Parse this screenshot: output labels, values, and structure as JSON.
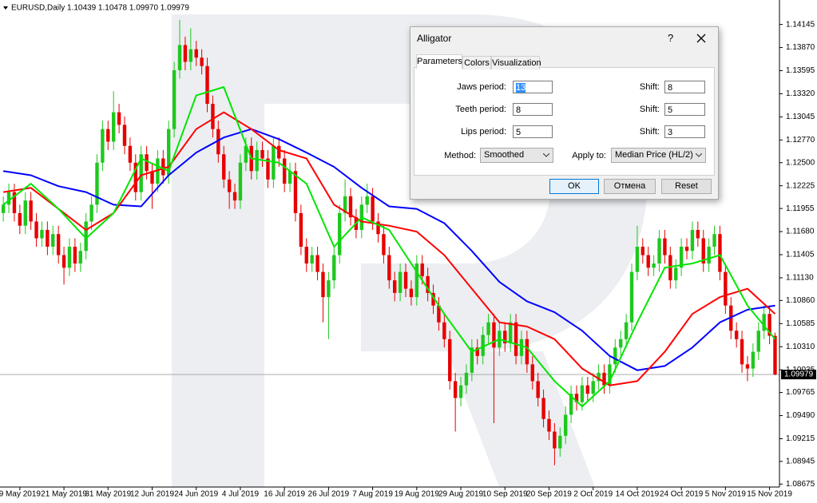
{
  "chart_data": {
    "type": "candlestick",
    "header": "EURUSD,Daily  1.10439 1.10478 1.09970 1.09979",
    "candles": {
      "open": [
        1.119,
        1.12,
        1.1215,
        1.119,
        1.1175,
        1.1205,
        1.118,
        1.116,
        1.117,
        1.115,
        1.1165,
        1.114,
        1.1125,
        1.115,
        1.113,
        1.1145,
        1.118,
        1.12,
        1.125,
        1.129,
        1.1275,
        1.131,
        1.1295,
        1.127,
        1.125,
        1.1215,
        1.126,
        1.124,
        1.1225,
        1.1255,
        1.1235,
        1.129,
        1.136,
        1.139,
        1.137,
        1.1385,
        1.1375,
        1.1365,
        1.132,
        1.129,
        1.126,
        1.123,
        1.1215,
        1.1205,
        1.125,
        1.127,
        1.124,
        1.1265,
        1.1255,
        1.123,
        1.127,
        1.1255,
        1.1225,
        1.124,
        1.119,
        1.115,
        1.113,
        1.114,
        1.112,
        1.109,
        1.111,
        1.114,
        1.119,
        1.121,
        1.1185,
        1.117,
        1.12,
        1.121,
        1.118,
        1.1165,
        1.114,
        1.111,
        1.1095,
        1.112,
        1.11,
        1.109,
        1.113,
        1.1115,
        1.1095,
        1.108,
        1.106,
        1.104,
        1.099,
        1.097,
        1.0985,
        1.1,
        1.103,
        1.102,
        1.1045,
        1.106,
        1.103,
        1.105,
        1.1035,
        1.106,
        1.102,
        1.104,
        1.101,
        1.099,
        1.097,
        1.0945,
        1.093,
        1.091,
        1.0925,
        1.095,
        1.0975,
        1.0965,
        1.0985,
        1.0975,
        1.099,
        1.1,
        1.0985,
        1.101,
        1.103,
        1.104,
        1.106,
        1.112,
        1.115,
        1.114,
        1.1125,
        1.113,
        1.116,
        1.114,
        1.111,
        1.1125,
        1.115,
        1.1145,
        1.117,
        1.116,
        1.113,
        1.115,
        1.1165,
        1.112,
        1.108,
        1.105,
        1.104,
        1.101,
        1.1005,
        1.1025,
        1.105,
        1.107,
        1.10439
      ],
      "high": [
        1.121,
        1.1225,
        1.1225,
        1.12,
        1.1215,
        1.1215,
        1.119,
        1.118,
        1.118,
        1.1175,
        1.1175,
        1.115,
        1.116,
        1.116,
        1.1155,
        1.119,
        1.121,
        1.126,
        1.13,
        1.13,
        1.1335,
        1.132,
        1.1305,
        1.128,
        1.126,
        1.127,
        1.127,
        1.125,
        1.1265,
        1.1265,
        1.13,
        1.137,
        1.142,
        1.14,
        1.141,
        1.1395,
        1.1385,
        1.1375,
        1.133,
        1.13,
        1.127,
        1.124,
        1.1225,
        1.126,
        1.128,
        1.128,
        1.1275,
        1.1275,
        1.1265,
        1.128,
        1.128,
        1.1265,
        1.125,
        1.125,
        1.12,
        1.116,
        1.115,
        1.115,
        1.113,
        1.112,
        1.115,
        1.12,
        1.123,
        1.122,
        1.1195,
        1.121,
        1.1225,
        1.122,
        1.119,
        1.1175,
        1.115,
        1.112,
        1.113,
        1.113,
        1.111,
        1.114,
        1.114,
        1.1125,
        1.1105,
        1.109,
        1.107,
        1.105,
        1.1,
        1.0995,
        1.101,
        1.104,
        1.104,
        1.1055,
        1.107,
        1.107,
        1.106,
        1.106,
        1.107,
        1.107,
        1.105,
        1.105,
        1.102,
        1.1,
        1.098,
        1.0955,
        1.094,
        1.0935,
        1.096,
        1.0985,
        1.0985,
        1.0995,
        1.0995,
        1.1,
        1.101,
        1.101,
        1.102,
        1.104,
        1.105,
        1.107,
        1.113,
        1.1175,
        1.116,
        1.115,
        1.114,
        1.117,
        1.117,
        1.115,
        1.1135,
        1.116,
        1.116,
        1.118,
        1.118,
        1.117,
        1.116,
        1.1175,
        1.1175,
        1.113,
        1.109,
        1.106,
        1.105,
        1.102,
        1.1035,
        1.106,
        1.108,
        1.108,
        1.10478
      ],
      "low": [
        1.118,
        1.119,
        1.118,
        1.1165,
        1.1165,
        1.117,
        1.115,
        1.115,
        1.114,
        1.114,
        1.113,
        1.1105,
        1.1115,
        1.112,
        1.112,
        1.1135,
        1.117,
        1.119,
        1.124,
        1.1265,
        1.1265,
        1.1285,
        1.126,
        1.124,
        1.1205,
        1.1205,
        1.123,
        1.1195,
        1.1215,
        1.1225,
        1.1225,
        1.128,
        1.135,
        1.136,
        1.136,
        1.1365,
        1.1355,
        1.131,
        1.128,
        1.125,
        1.122,
        1.1195,
        1.1195,
        1.1195,
        1.124,
        1.123,
        1.123,
        1.1245,
        1.122,
        1.122,
        1.1245,
        1.1215,
        1.1215,
        1.118,
        1.114,
        1.112,
        1.112,
        1.111,
        1.106,
        1.104,
        1.11,
        1.113,
        1.118,
        1.1175,
        1.116,
        1.116,
        1.119,
        1.117,
        1.1155,
        1.113,
        1.11,
        1.1085,
        1.1085,
        1.109,
        1.108,
        1.108,
        1.1105,
        1.1085,
        1.107,
        1.105,
        1.103,
        1.098,
        1.093,
        1.096,
        1.0975,
        1.099,
        1.101,
        1.101,
        1.1035,
        1.094,
        1.102,
        1.1025,
        1.1025,
        1.101,
        1.101,
        1.1,
        1.098,
        1.096,
        1.0935,
        1.092,
        1.089,
        1.09,
        1.0915,
        1.094,
        1.0955,
        1.0955,
        1.0965,
        1.0965,
        1.098,
        1.0975,
        1.0975,
        1.1,
        1.102,
        1.103,
        1.105,
        1.111,
        1.113,
        1.1115,
        1.1115,
        1.112,
        1.113,
        1.11,
        1.11,
        1.1115,
        1.1135,
        1.1135,
        1.115,
        1.112,
        1.112,
        1.114,
        1.111,
        1.107,
        1.104,
        1.103,
        1.1,
        1.099,
        1.0995,
        1.1015,
        1.104,
        1.1034,
        1.0997
      ],
      "close": [
        1.12,
        1.1215,
        1.119,
        1.1175,
        1.1205,
        1.118,
        1.116,
        1.117,
        1.115,
        1.1165,
        1.114,
        1.1125,
        1.115,
        1.113,
        1.1145,
        1.118,
        1.12,
        1.125,
        1.129,
        1.1275,
        1.131,
        1.1295,
        1.127,
        1.125,
        1.1215,
        1.126,
        1.124,
        1.1225,
        1.1255,
        1.1235,
        1.129,
        1.136,
        1.139,
        1.137,
        1.1385,
        1.1375,
        1.1365,
        1.132,
        1.129,
        1.126,
        1.123,
        1.1215,
        1.1205,
        1.125,
        1.127,
        1.124,
        1.1265,
        1.1255,
        1.123,
        1.127,
        1.1255,
        1.1225,
        1.124,
        1.119,
        1.115,
        1.113,
        1.114,
        1.112,
        1.109,
        1.111,
        1.114,
        1.119,
        1.121,
        1.1185,
        1.117,
        1.12,
        1.121,
        1.118,
        1.1165,
        1.114,
        1.111,
        1.1095,
        1.112,
        1.11,
        1.109,
        1.113,
        1.1115,
        1.1095,
        1.108,
        1.106,
        1.104,
        1.099,
        1.097,
        1.0985,
        1.1,
        1.103,
        1.102,
        1.1045,
        1.106,
        1.103,
        1.105,
        1.1035,
        1.106,
        1.102,
        1.104,
        1.101,
        1.099,
        1.097,
        1.0945,
        1.093,
        1.091,
        1.0925,
        1.095,
        1.0975,
        1.0965,
        1.0985,
        1.0975,
        1.099,
        1.1,
        1.0985,
        1.101,
        1.103,
        1.104,
        1.106,
        1.112,
        1.115,
        1.114,
        1.1125,
        1.113,
        1.116,
        1.114,
        1.111,
        1.1125,
        1.115,
        1.1145,
        1.117,
        1.116,
        1.113,
        1.115,
        1.1165,
        1.112,
        1.108,
        1.105,
        1.104,
        1.101,
        1.1005,
        1.1025,
        1.105,
        1.107,
        1.1044,
        1.09979
      ],
      "up_color": "#1ec81e",
      "down_color": "#e60000"
    },
    "series": [
      {
        "name": "Jaws",
        "color": "#0000ff",
        "x": [
          0,
          5,
          10,
          15,
          20,
          25,
          30,
          35,
          40,
          45,
          50,
          55,
          60,
          65,
          70,
          75,
          80,
          85,
          90,
          95,
          100,
          105,
          110,
          115,
          120,
          125,
          130,
          135,
          140
        ],
        "values": [
          1.124,
          1.1235,
          1.1222,
          1.1215,
          1.12,
          1.1198,
          1.1235,
          1.1262,
          1.128,
          1.129,
          1.1278,
          1.1262,
          1.1245,
          1.122,
          1.1198,
          1.1195,
          1.1178,
          1.1145,
          1.1108,
          1.1085,
          1.1072,
          1.105,
          1.102,
          1.1003,
          1.1008,
          1.103,
          1.106,
          1.1075,
          1.108
        ]
      },
      {
        "name": "Teeth",
        "color": "#ff0000",
        "x": [
          0,
          5,
          10,
          15,
          20,
          25,
          30,
          35,
          40,
          45,
          50,
          55,
          60,
          65,
          70,
          75,
          80,
          85,
          90,
          95,
          100,
          105,
          110,
          115,
          120,
          125,
          130,
          135,
          140
        ],
        "values": [
          1.1215,
          1.122,
          1.1195,
          1.117,
          1.119,
          1.1235,
          1.1245,
          1.129,
          1.131,
          1.129,
          1.1265,
          1.1255,
          1.12,
          1.118,
          1.1175,
          1.1168,
          1.114,
          1.11,
          1.106,
          1.1055,
          1.104,
          1.1005,
          1.0985,
          1.099,
          1.1025,
          1.107,
          1.109,
          1.11,
          1.107
        ]
      },
      {
        "name": "Lips",
        "color": "#00e600",
        "x": [
          0,
          5,
          10,
          15,
          20,
          25,
          30,
          35,
          40,
          45,
          50,
          55,
          60,
          65,
          70,
          75,
          80,
          85,
          90,
          95,
          100,
          105,
          110,
          115,
          120,
          125,
          130,
          135,
          140
        ],
        "values": [
          1.12,
          1.1225,
          1.1195,
          1.116,
          1.119,
          1.1255,
          1.124,
          1.133,
          1.134,
          1.1255,
          1.125,
          1.1225,
          1.115,
          1.1185,
          1.117,
          1.112,
          1.107,
          1.1025,
          1.104,
          1.103,
          1.099,
          1.096,
          1.099,
          1.106,
          1.1125,
          1.113,
          1.114,
          1.108,
          1.104
        ]
      }
    ],
    "current_price": 1.09979,
    "xlim": [
      -0.6,
      140.8
    ],
    "ylim": [
      1.0864,
      1.1436
    ],
    "xticks": [
      {
        "value": 3,
        "label": "9 May 2019"
      },
      {
        "value": 11,
        "label": "21 May 2019"
      },
      {
        "value": 19,
        "label": "31 May 2019"
      },
      {
        "value": 27,
        "label": "12 Jun 2019"
      },
      {
        "value": 35,
        "label": "24 Jun 2019"
      },
      {
        "value": 43,
        "label": "4 Jul 2019"
      },
      {
        "value": 51,
        "label": "16 Jul 2019"
      },
      {
        "value": 59,
        "label": "26 Jul 2019"
      },
      {
        "value": 67,
        "label": "7 Aug 2019"
      },
      {
        "value": 75,
        "label": "19 Aug 2019"
      },
      {
        "value": 83,
        "label": "29 Aug 2019"
      },
      {
        "value": 91,
        "label": "10 Sep 2019"
      },
      {
        "value": 99,
        "label": "20 Sep 2019"
      },
      {
        "value": 107,
        "label": "2 Oct 2019"
      },
      {
        "value": 115,
        "label": "14 Oct 2019"
      },
      {
        "value": 123,
        "label": "24 Oct 2019"
      },
      {
        "value": 131,
        "label": "5 Nov 2019"
      },
      {
        "value": 139,
        "label": "15 Nov 2019"
      }
    ],
    "yticks": [
      {
        "value": 1.14145,
        "label": "1.14145"
      },
      {
        "value": 1.1387,
        "label": "1.13870"
      },
      {
        "value": 1.13595,
        "label": "1.13595"
      },
      {
        "value": 1.1332,
        "label": "1.13320"
      },
      {
        "value": 1.13045,
        "label": "1.13045"
      },
      {
        "value": 1.1277,
        "label": "1.12770"
      },
      {
        "value": 1.125,
        "label": "1.12500"
      },
      {
        "value": 1.12225,
        "label": "1.12225"
      },
      {
        "value": 1.11955,
        "label": "1.11955"
      },
      {
        "value": 1.1168,
        "label": "1.11680"
      },
      {
        "value": 1.11405,
        "label": "1.11405"
      },
      {
        "value": 1.1113,
        "label": "1.11130"
      },
      {
        "value": 1.1086,
        "label": "1.10860"
      },
      {
        "value": 1.10585,
        "label": "1.10585"
      },
      {
        "value": 1.1031,
        "label": "1.10310"
      },
      {
        "value": 1.10035,
        "label": "1.10035"
      },
      {
        "value": 1.09765,
        "label": "1.09765"
      },
      {
        "value": 1.0949,
        "label": "1.09490"
      },
      {
        "value": 1.09215,
        "label": "1.09215"
      },
      {
        "value": 1.08945,
        "label": "1.08945"
      },
      {
        "value": 1.08675,
        "label": "1.08675"
      }
    ]
  },
  "dialog": {
    "title": "Alligator",
    "help": "?",
    "tabs": [
      "Parameters",
      "Colors",
      "Visualization"
    ],
    "rows": [
      {
        "label": "Jaws period:",
        "value": 13,
        "shift_label": "Shift:",
        "shift": 8
      },
      {
        "label": "Teeth period:",
        "value": 8,
        "shift_label": "Shift:",
        "shift": 5
      },
      {
        "label": "Lips period:",
        "value": 5,
        "shift_label": "Shift:",
        "shift": 3
      }
    ],
    "method_label": "Method:",
    "method": "Smoothed",
    "apply_label": "Apply to:",
    "apply": "Median Price (HL/2)",
    "buttons": [
      "OK",
      "Отмена",
      "Reset"
    ]
  }
}
